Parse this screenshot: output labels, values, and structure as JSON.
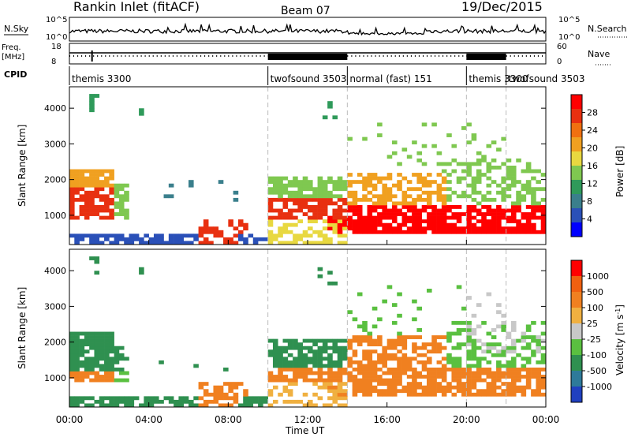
{
  "header": {
    "title": "Rankin Inlet (fitACF)",
    "beam": "Beam 07",
    "date": "19/Dec/2015"
  },
  "strips": {
    "nsky_label": "N.Sky",
    "nsearch_label": "N.Search",
    "freq_label_top": "Freq.",
    "freq_label_bottom": "[MHz]",
    "nave_label": "Nave",
    "cpid_label": "CPID",
    "nsky_ticks": [
      "10^5",
      "10^0"
    ],
    "nsearch_ticks": [
      "10^5",
      "10^0"
    ],
    "freq_ticks": [
      "18",
      "8"
    ],
    "nave_ticks": [
      "60",
      "0"
    ]
  },
  "cpid_segments": [
    {
      "label": "themis 3300",
      "start_h": 0
    },
    {
      "label": "twofsound 3503",
      "start_h": 10
    },
    {
      "label": "normal (fast) 151",
      "start_h": 14
    },
    {
      "label": "themis 3300",
      "start_h": 20
    },
    {
      "label": "twofsound 3503",
      "start_h": 22
    }
  ],
  "chart_data": [
    {
      "type": "heatmap",
      "name": "power-panel",
      "ylabel": "Slant Range [km]",
      "colorbar_label": "Power [dB]",
      "xlim": [
        0,
        24
      ],
      "ylim": [
        180,
        4600
      ],
      "yticks": [
        1000,
        2000,
        3000,
        4000
      ],
      "colorbar_ticks": [
        "28",
        "24",
        "20",
        "16",
        "12",
        "8",
        "4"
      ],
      "colors": [
        "#0000ff",
        "#2a50b8",
        "#3a7f8c",
        "#2f9a5a",
        "#7fc850",
        "#e8d840",
        "#f0a020",
        "#f07010",
        "#e83010",
        "#ff0000"
      ]
    },
    {
      "type": "heatmap",
      "name": "velocity-panel",
      "ylabel": "Slant Range [km]",
      "xlabel": "Time UT",
      "colorbar_label": "Velocity [m s",
      "colorbar_label_exp": "-1",
      "xlim": [
        0,
        24
      ],
      "ylim": [
        180,
        4600
      ],
      "yticks": [
        1000,
        2000,
        3000,
        4000
      ],
      "xticks": [
        "00:00",
        "04:00",
        "08:00",
        "12:00",
        "16:00",
        "20:00",
        "00:00"
      ],
      "colorbar_ticks": [
        "1000",
        "500",
        "100",
        "25",
        "-25",
        "-100",
        "-500",
        "-1000"
      ],
      "colors": [
        "#2040c0",
        "#2e7a9a",
        "#2f9050",
        "#5ac040",
        "#c8c8c8",
        "#f0b040",
        "#f08020",
        "#f06010",
        "#ff0000"
      ]
    }
  ]
}
